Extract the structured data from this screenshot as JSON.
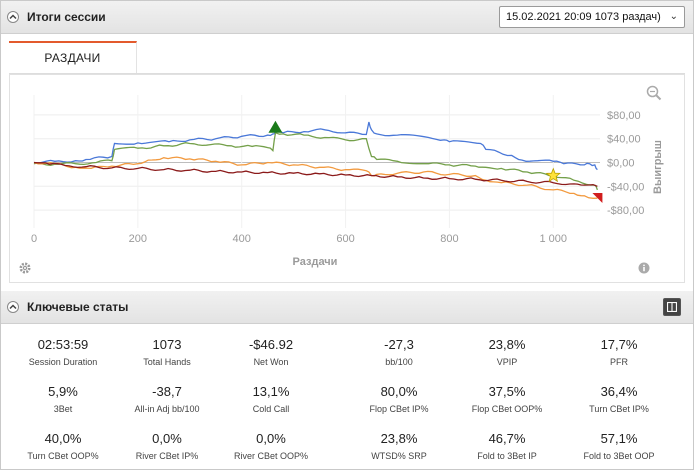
{
  "session": {
    "title": "Итоги сессии",
    "selected_session": "15.02.2021 20:09 1073 раздач)"
  },
  "tabs": [
    {
      "label": "РАЗДАЧИ"
    }
  ],
  "chart_data": {
    "type": "line",
    "xlabel": "Раздачи",
    "ylabel": "Выигрыш",
    "x_ticks": [
      "0",
      "200",
      "400",
      "600",
      "800",
      "1 000"
    ],
    "y_ticks": [
      "$80,00",
      "$40,00",
      "$0,00",
      "-$40,00",
      "-$80,00"
    ],
    "xlim": [
      0,
      1090
    ],
    "ylim": [
      -100,
      100
    ],
    "series": [
      {
        "name": "blue",
        "color": "#4a78d8",
        "x": [
          0,
          40,
          80,
          100,
          150,
          155,
          200,
          260,
          300,
          350,
          400,
          450,
          460,
          465,
          480,
          520,
          560,
          600,
          640,
          645,
          650,
          660,
          700,
          760,
          790,
          800,
          860,
          870,
          920,
          940,
          1000,
          1020,
          1060,
          1070,
          1080,
          1085
        ],
        "y": [
          0,
          2,
          3,
          5,
          10,
          32,
          33,
          35,
          38,
          40,
          44,
          46,
          48,
          52,
          50,
          52,
          55,
          50,
          47,
          68,
          55,
          48,
          46,
          42,
          38,
          35,
          32,
          22,
          12,
          4,
          2,
          -2,
          -4,
          -2,
          -4,
          -12
        ]
      },
      {
        "name": "green",
        "color": "#74a04a",
        "x": [
          0,
          40,
          80,
          120,
          150,
          155,
          200,
          250,
          300,
          340,
          380,
          420,
          450,
          460,
          465,
          480,
          520,
          560,
          600,
          640,
          650,
          660,
          700,
          760,
          800,
          850,
          870,
          900,
          950,
          1000,
          1040,
          1080,
          1085
        ],
        "y": [
          -2,
          -3,
          -2,
          0,
          3,
          22,
          24,
          28,
          32,
          30,
          28,
          27,
          25,
          20,
          50,
          48,
          46,
          42,
          38,
          40,
          10,
          5,
          2,
          -2,
          -4,
          -6,
          -8,
          -10,
          -16,
          -22,
          -30,
          -38,
          -46
        ]
      },
      {
        "name": "orange",
        "color": "#f29a3f",
        "x": [
          0,
          40,
          80,
          110,
          150,
          200,
          220,
          250,
          300,
          350,
          400,
          450,
          500,
          550,
          600,
          640,
          650,
          660,
          700,
          750,
          800,
          850,
          870,
          900,
          950,
          1000,
          1040,
          1060,
          1085
        ],
        "y": [
          0,
          -2,
          -8,
          -10,
          -6,
          -2,
          4,
          8,
          6,
          2,
          -4,
          0,
          -4,
          -8,
          -12,
          -14,
          -22,
          -20,
          -18,
          -16,
          -20,
          -22,
          -30,
          -34,
          -38,
          -46,
          -52,
          -56,
          -60
        ]
      },
      {
        "name": "dark-red",
        "color": "#8b1a1a",
        "x": [
          0,
          30,
          60,
          100,
          150,
          200,
          250,
          300,
          350,
          400,
          450,
          500,
          550,
          600,
          650,
          700,
          750,
          800,
          850,
          900,
          950,
          1000,
          1040,
          1060,
          1085
        ],
        "y": [
          0,
          -3,
          -5,
          -7,
          -9,
          -10,
          -12,
          -13,
          -15,
          -16,
          -17,
          -18,
          -19,
          -21,
          -22,
          -24,
          -26,
          -27,
          -28,
          -30,
          -32,
          -34,
          -36,
          -38,
          -40
        ]
      }
    ],
    "markers": [
      {
        "type": "max",
        "x": 465,
        "y": 60,
        "color": "#1a7a1a"
      },
      {
        "type": "star",
        "x": 1000,
        "y": -22,
        "color": "#ffe23a"
      },
      {
        "type": "min",
        "x": 1085,
        "y": -58,
        "color": "#d11d1d"
      }
    ]
  },
  "key_stats": {
    "title": "Ключевые статы",
    "rows": [
      [
        {
          "value": "02:53:59",
          "label": "Session Duration"
        },
        {
          "value": "1073",
          "label": "Total Hands"
        },
        {
          "value": "-$46.92",
          "label": "Net Won"
        },
        {
          "value": "-27,3",
          "label": "bb/100"
        },
        {
          "value": "23,8%",
          "label": "VPIP"
        },
        {
          "value": "17,7%",
          "label": "PFR"
        }
      ],
      [
        {
          "value": "5,9%",
          "label": "3Bet"
        },
        {
          "value": "-38,7",
          "label": "All-in Adj bb/100"
        },
        {
          "value": "13,1%",
          "label": "Cold Call"
        },
        {
          "value": "80,0%",
          "label": "Flop CBet IP%"
        },
        {
          "value": "37,5%",
          "label": "Flop CBet OOP%"
        },
        {
          "value": "36,4%",
          "label": "Turn CBet IP%"
        }
      ],
      [
        {
          "value": "40,0%",
          "label": "Turn CBet OOP%"
        },
        {
          "value": "0,0%",
          "label": "River CBet IP%"
        },
        {
          "value": "0,0%",
          "label": "River CBet OOP%"
        },
        {
          "value": "23,8%",
          "label": "WTSD% SRP"
        },
        {
          "value": "46,7%",
          "label": "Fold to 3Bet IP"
        },
        {
          "value": "57,1%",
          "label": "Fold to 3Bet OOP"
        }
      ]
    ]
  }
}
